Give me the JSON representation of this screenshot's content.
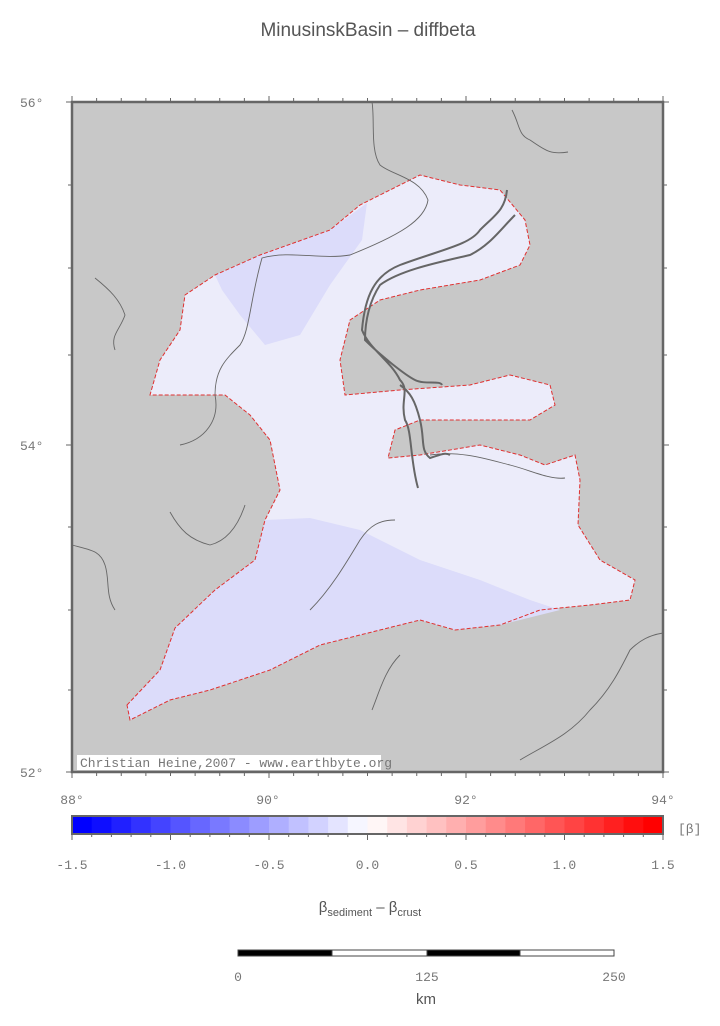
{
  "title": "MinusinskBasin – diffbeta",
  "map": {
    "lat_labels": [
      "56°",
      "54°",
      "52°"
    ],
    "lon_labels": [
      "88°",
      "90°",
      "92°",
      "94°"
    ],
    "credit": "Christian Heine,2007 - www.earthbyte.org"
  },
  "colorbar": {
    "tick_labels": [
      "-1.5",
      "-1.0",
      "-0.5",
      "0.0",
      "0.5",
      "1.0",
      "1.5"
    ],
    "unit": "[β]",
    "label": {
      "symbol1": "β",
      "subscript1": "sediment",
      "operator": " – ",
      "symbol2": "β",
      "subscript2": "crust"
    }
  },
  "scalebar": {
    "labels": [
      "0",
      "125",
      "250"
    ],
    "unit": "km"
  }
}
